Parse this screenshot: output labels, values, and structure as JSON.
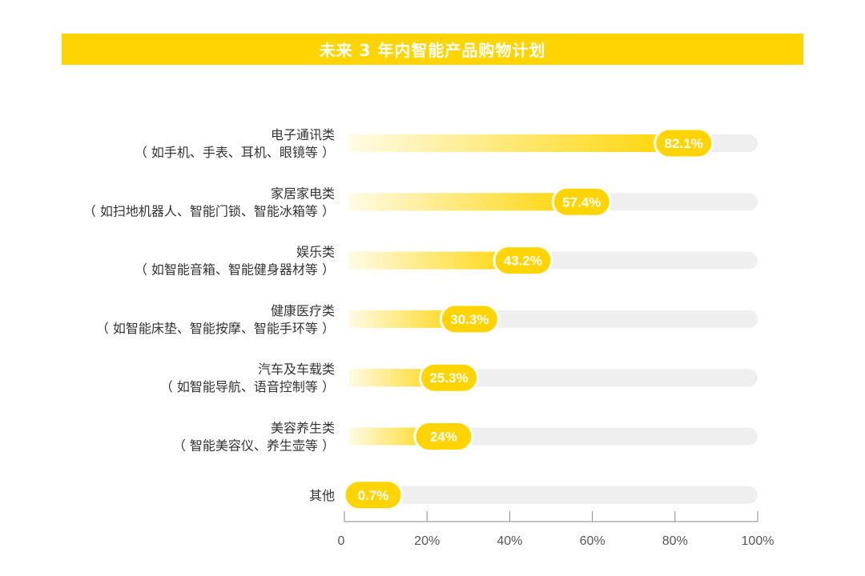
{
  "title": "未来 3 年内智能产品购物计划",
  "colors": {
    "accent": "#FFD400",
    "track": "#EFEFEF",
    "bar_start": "#FFFBE6",
    "bar_end": "#FFD400",
    "label_text": "#FFFFFF",
    "axis": "#888888"
  },
  "chart_data": {
    "type": "bar",
    "orientation": "horizontal",
    "title": "未来 3 年内智能产品购物计划",
    "unit": "%",
    "categories": [
      {
        "name": "电子通讯类",
        "detail": "（ 如手机、手表、耳机、眼镜等 ）"
      },
      {
        "name": "家居家电类",
        "detail": "（ 如扫地机器人、智能门锁、智能冰箱等 ）"
      },
      {
        "name": "娱乐类",
        "detail": "（ 如智能音箱、智能健身器材等 ）"
      },
      {
        "name": "健康医疗类",
        "detail": "（ 如智能床垫、智能按摩、智能手环等 ）"
      },
      {
        "name": "汽车及车载类",
        "detail": "（ 如智能导航、语音控制等 ）"
      },
      {
        "name": "美容养生类",
        "detail": "（ 智能美容仪、养生壶等 ）"
      },
      {
        "name": "其他",
        "detail": ""
      }
    ],
    "values": [
      82.1,
      57.4,
      43.2,
      30.3,
      25.3,
      24,
      0.7
    ],
    "value_labels": [
      "82.1%",
      "57.4%",
      "43.2%",
      "30.3%",
      "25.3%",
      "24%",
      "0.7%"
    ],
    "xlim": [
      0,
      100
    ],
    "xticks": [
      0,
      20,
      40,
      60,
      80,
      100
    ],
    "xtick_labels": [
      "0",
      "20%",
      "40%",
      "60%",
      "80%",
      "100%"
    ],
    "grid": false,
    "legend": "none"
  }
}
